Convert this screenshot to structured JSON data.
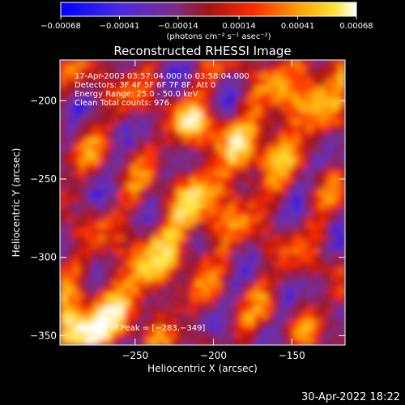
{
  "chart_data": {
    "type": "heatmap",
    "title": "Reconstructed RHESSI Image",
    "xlabel": "Heliocentric X (arcsec)",
    "ylabel": "Heliocentric Y (arcsec)",
    "x_ticks": [
      "−250",
      "−200",
      "−150"
    ],
    "x_tick_values": [
      -250,
      -200,
      -150
    ],
    "y_ticks": [
      "−200",
      "−250",
      "−300",
      "−350"
    ],
    "y_tick_values": [
      -200,
      -250,
      -300,
      -350
    ],
    "xlim": [
      -298,
      -116
    ],
    "ylim": [
      -356,
      -174
    ],
    "colorbar": {
      "label": "(photons cm⁻² s⁻¹ asec⁻²)",
      "tick_labels": [
        "−0.00068",
        "−0.00041",
        "−0.00014",
        "0.00014",
        "0.00041",
        "0.00068"
      ],
      "range": [
        -0.00068,
        0.00068
      ],
      "colors": [
        "#0000ff",
        "#5b2fc8",
        "#7a2d8a",
        "#a01414",
        "#ff2a00",
        "#ff9b00",
        "#ffe030",
        "#ffffff"
      ]
    },
    "annotations": [
      "17-Apr-2003 03:57:04.000 to 03:58:04.000",
      "Detectors: 3F 4F 5F 6F 7F 8F, Att 0",
      "Energy Range: 25.0 - 50.0 keV",
      "Clean     Total counts: 976.",
      "Position of Peak = [−283,−349]"
    ],
    "peak_position": [
      -283,
      -349
    ]
  },
  "footer": {
    "timestamp": "30-Apr-2022 18:22"
  }
}
